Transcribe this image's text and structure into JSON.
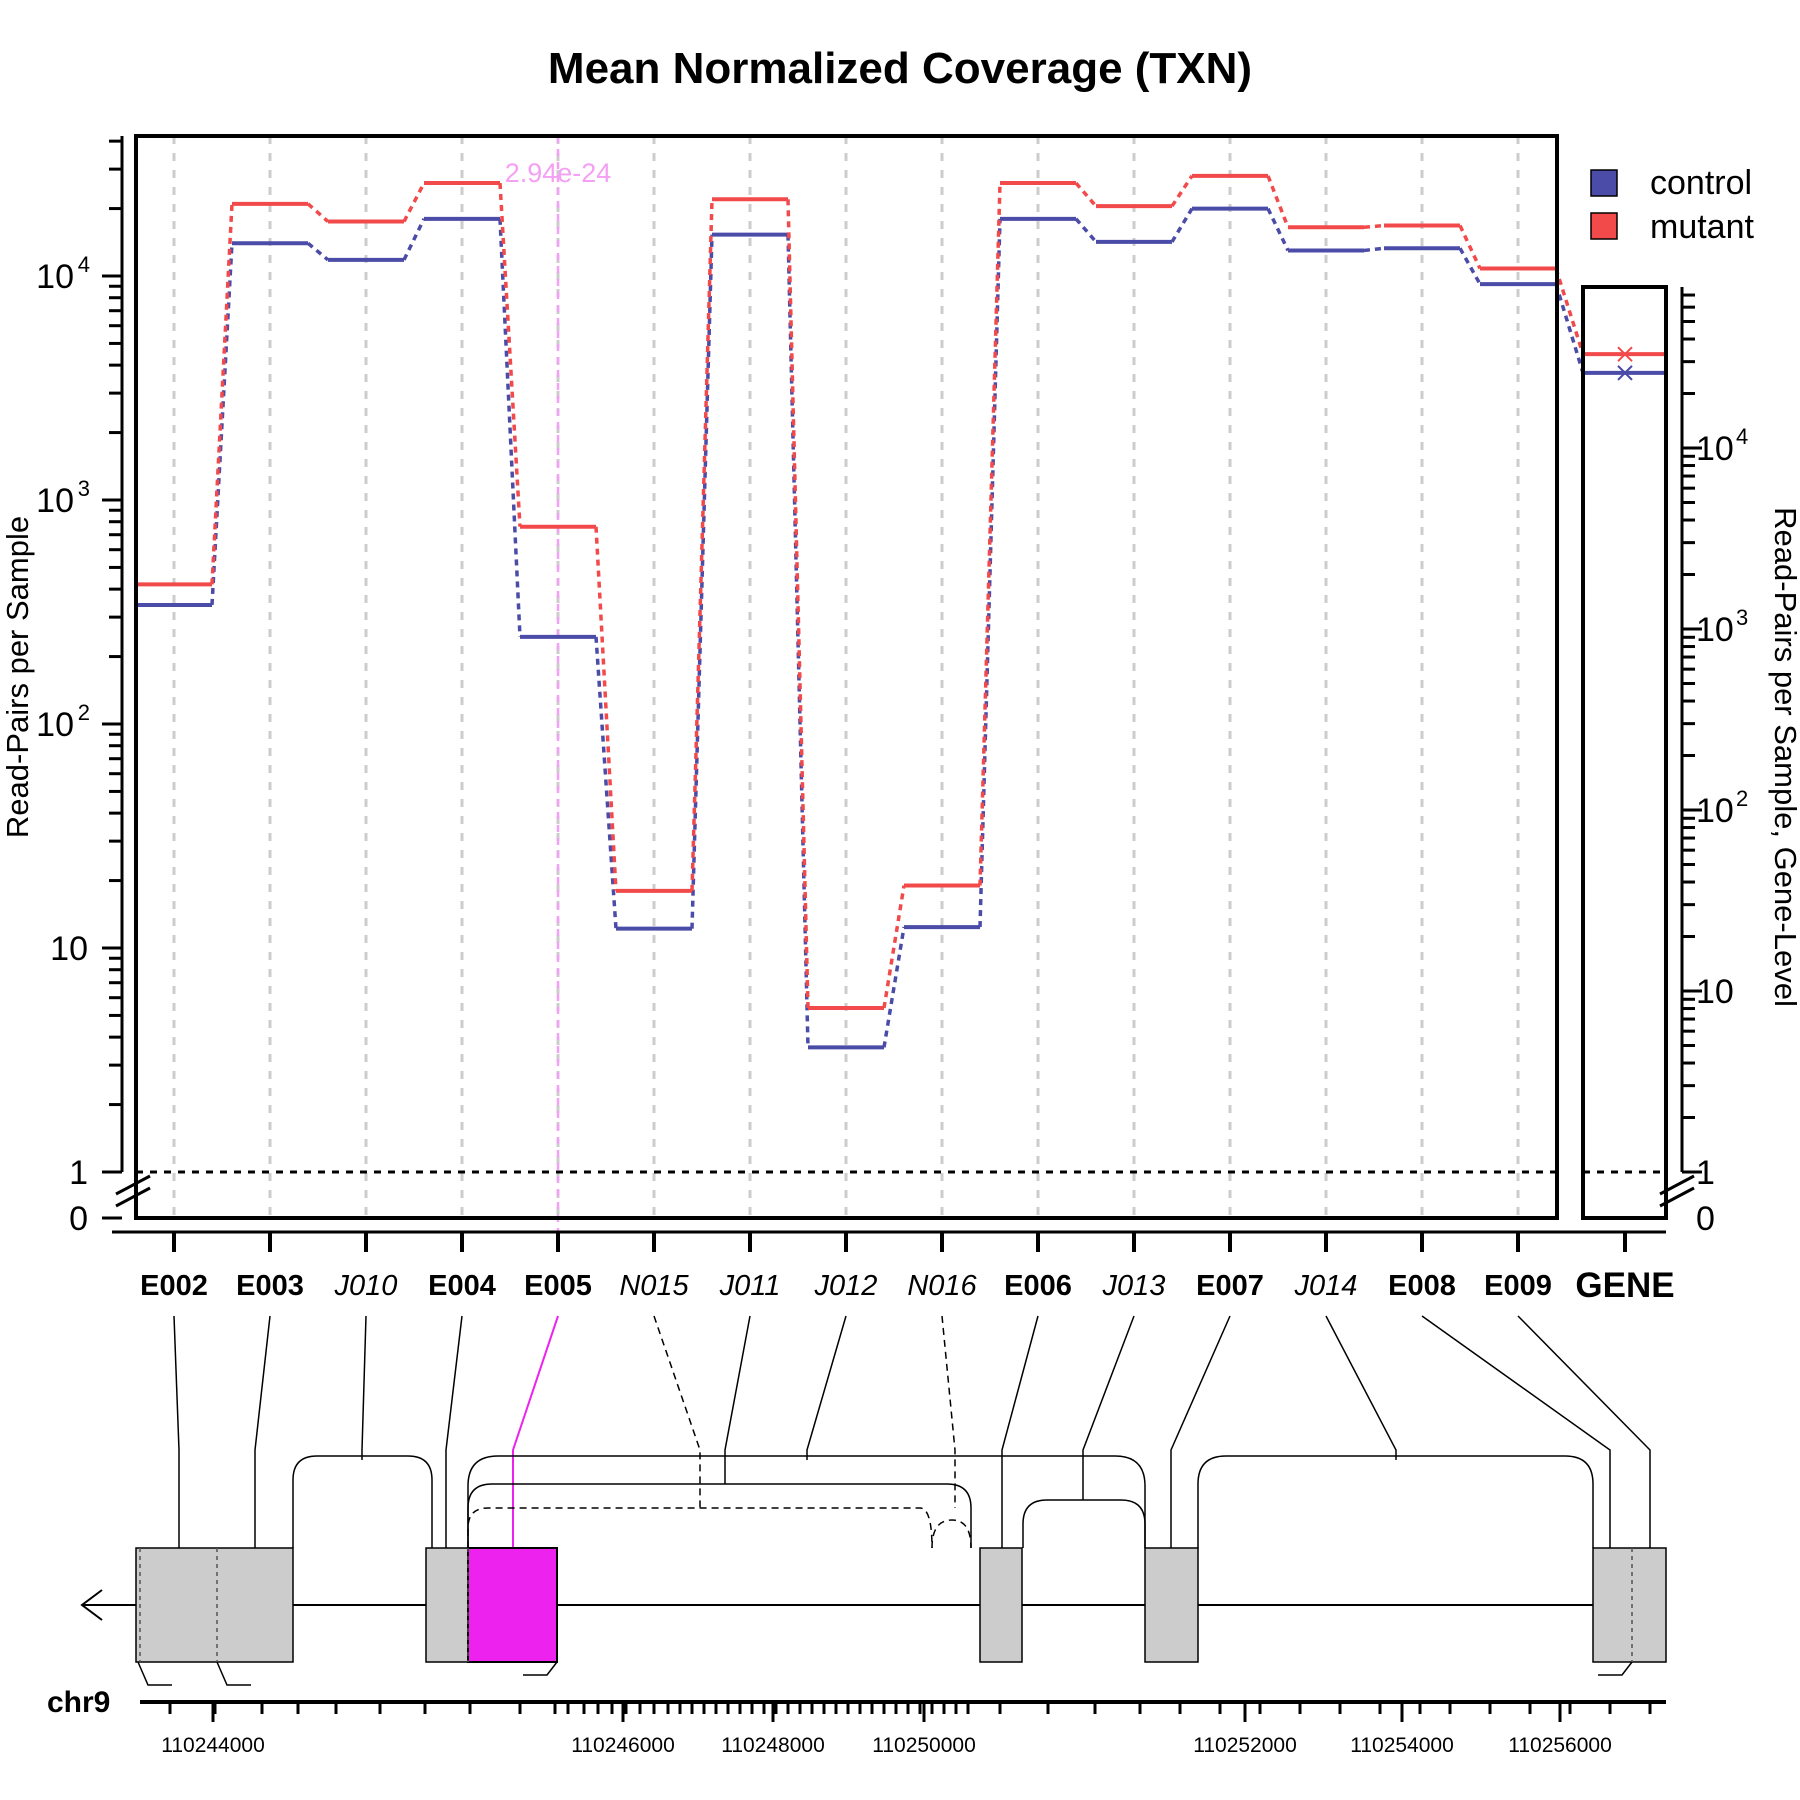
{
  "chart_data": {
    "type": "line",
    "title": "Mean Normalized Coverage (TXN)",
    "ylabel": "Read-Pairs per Sample",
    "ylabel_right": "Read-Pairs per Sample, Gene-Level",
    "y_scale": "log",
    "ylim": [
      0,
      40000
    ],
    "y_ticks": [
      "0",
      "1",
      "10",
      "10",
      "10",
      "10"
    ],
    "y_tick_exponents": [
      "",
      "",
      "",
      "2",
      "3",
      "4"
    ],
    "reference_line": 1,
    "grid": "vertical dashed at each feature",
    "legend": {
      "position": "top-right",
      "entries": [
        "control",
        "mutant"
      ]
    },
    "colors": {
      "control": "#4b4ba8",
      "mutant": "#f24a4a",
      "highlight": "#ee22ee",
      "highlight_light": "#f4a0f4",
      "exon_fill": "#cccccc",
      "grid": "#cccccc"
    },
    "categories": [
      "E002",
      "E003",
      "J010",
      "E004",
      "E005",
      "N015",
      "J011",
      "J012",
      "N016",
      "E006",
      "J013",
      "E007",
      "J014",
      "E008",
      "E009"
    ],
    "category_kind": [
      "exon",
      "exon",
      "junction",
      "exon",
      "exon",
      "novel",
      "junction",
      "junction",
      "novel",
      "exon",
      "junction",
      "exon",
      "junction",
      "exon",
      "exon"
    ],
    "series": [
      {
        "name": "control",
        "values": [
          340,
          14000,
          11800,
          18000,
          245,
          12.2,
          15300,
          3.6,
          12.4,
          18000,
          14200,
          20000,
          13000,
          13300,
          9200
        ]
      },
      {
        "name": "mutant",
        "values": [
          420,
          21000,
          17500,
          26000,
          760,
          18,
          22000,
          5.4,
          19,
          26000,
          20500,
          28000,
          16500,
          16800,
          10800
        ]
      }
    ],
    "gene_level": {
      "label": "GENE",
      "control": 26000,
      "mutant": 33000,
      "ylim": [
        0,
        60000
      ],
      "y_ticks": [
        "0",
        "1",
        "10",
        "10",
        "10",
        "10"
      ],
      "y_tick_exponents": [
        "",
        "",
        "",
        "2",
        "3",
        "4"
      ]
    },
    "highlight": {
      "feature": "E005",
      "pvalue": "2.94e-24"
    },
    "chromosome": "chr9",
    "genomic_ticks": [
      "110244000",
      "110246000",
      "110248000",
      "110250000",
      "110252000",
      "110254000",
      "110256000"
    ]
  }
}
